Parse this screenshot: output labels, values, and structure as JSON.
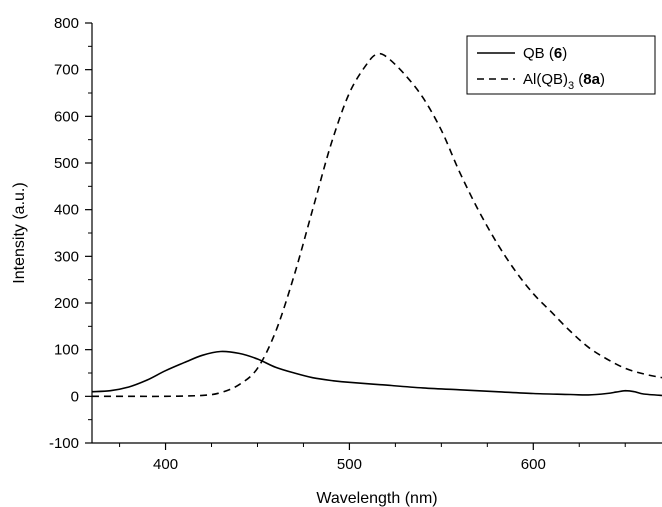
{
  "chart_data": {
    "type": "line",
    "title": "",
    "xlabel": "Wavelength (nm)",
    "ylabel": "Intensity (a.u.)",
    "xlim": [
      360,
      670
    ],
    "ylim": [
      -100,
      800
    ],
    "xticks": [
      400,
      500,
      600
    ],
    "yticks": [
      -100,
      0,
      100,
      200,
      300,
      400,
      500,
      600,
      700,
      800
    ],
    "grid": false,
    "legend_position": "top-right",
    "series": [
      {
        "name": "QB (6)",
        "name_parts": {
          "pre": "QB (",
          "bold": "6",
          "post": ")"
        },
        "style": "solid",
        "color": "#000000",
        "x": [
          360,
          370,
          380,
          390,
          400,
          410,
          420,
          430,
          440,
          450,
          460,
          470,
          480,
          490,
          500,
          520,
          540,
          560,
          580,
          600,
          620,
          630,
          640,
          645,
          650,
          655,
          660,
          670
        ],
        "y": [
          10,
          12,
          20,
          35,
          55,
          72,
          88,
          96,
          92,
          80,
          62,
          50,
          40,
          34,
          30,
          24,
          18,
          14,
          10,
          6,
          4,
          3,
          6,
          9,
          12,
          10,
          5,
          2
        ]
      },
      {
        "name": "Al(QB)3 (8a)",
        "name_parts": {
          "pre": "Al(QB)",
          "sub": "3",
          "mid": " (",
          "bold": "8a",
          "post": ")"
        },
        "style": "dashed",
        "color": "#000000",
        "x": [
          360,
          380,
          400,
          420,
          430,
          440,
          450,
          460,
          470,
          480,
          490,
          500,
          510,
          515,
          520,
          530,
          540,
          550,
          560,
          570,
          580,
          590,
          600,
          610,
          620,
          630,
          640,
          650,
          660,
          670
        ],
        "y": [
          0,
          0,
          0,
          2,
          8,
          25,
          60,
          140,
          260,
          400,
          540,
          650,
          715,
          733,
          728,
          690,
          640,
          570,
          480,
          400,
          330,
          270,
          220,
          180,
          140,
          105,
          80,
          60,
          48,
          40
        ]
      }
    ]
  }
}
